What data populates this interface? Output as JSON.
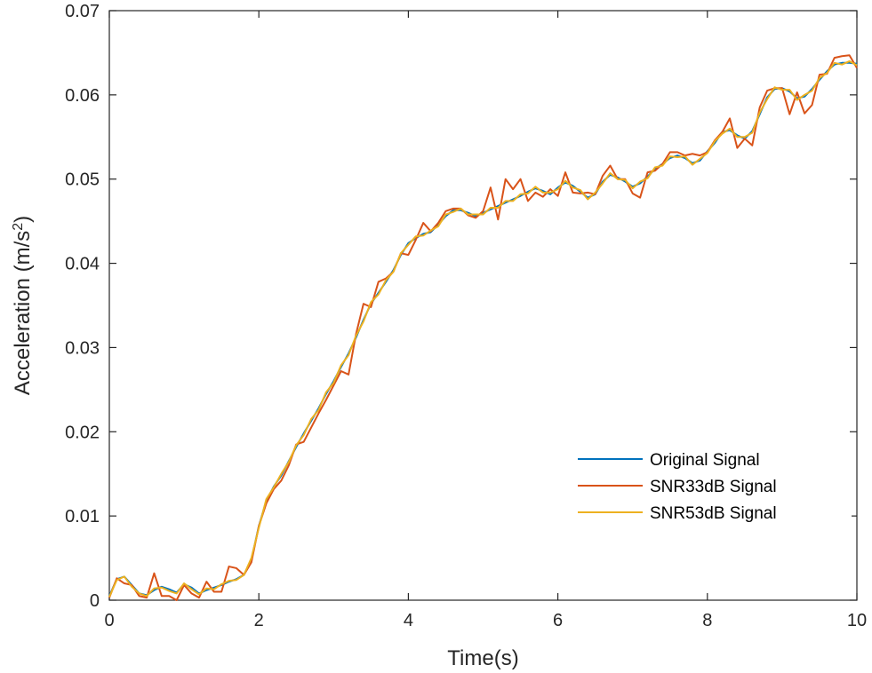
{
  "chart_data": {
    "type": "line",
    "xlabel": "Time(s)",
    "ylabel": "Acceleration (m/s",
    "ylabel_sup": "2",
    "ylabel_close": ")",
    "xlim": [
      0,
      10
    ],
    "ylim": [
      0,
      0.07
    ],
    "xticks": [
      0,
      2,
      4,
      6,
      8,
      10
    ],
    "xtick_labels": [
      "0",
      "2",
      "4",
      "6",
      "8",
      "10"
    ],
    "yticks": [
      0,
      0.01,
      0.02,
      0.03,
      0.04,
      0.05,
      0.06,
      0.07
    ],
    "ytick_labels": [
      "0",
      "0.01",
      "0.02",
      "0.03",
      "0.04",
      "0.05",
      "0.06",
      "0.07"
    ],
    "grid": false,
    "legend_position": "bottom-right",
    "x": [
      0.0,
      0.1,
      0.2,
      0.3,
      0.4,
      0.5,
      0.6,
      0.7,
      0.8,
      0.9,
      1.0,
      1.1,
      1.2,
      1.3,
      1.4,
      1.5,
      1.6,
      1.7,
      1.8,
      1.9,
      2.0,
      2.1,
      2.2,
      2.3,
      2.4,
      2.5,
      2.6,
      2.7,
      2.8,
      2.9,
      3.0,
      3.1,
      3.2,
      3.3,
      3.4,
      3.5,
      3.6,
      3.7,
      3.8,
      3.9,
      4.0,
      4.1,
      4.2,
      4.3,
      4.4,
      4.5,
      4.6,
      4.7,
      4.8,
      4.9,
      5.0,
      5.1,
      5.2,
      5.3,
      5.4,
      5.5,
      5.6,
      5.7,
      5.8,
      5.9,
      6.0,
      6.1,
      6.2,
      6.3,
      6.4,
      6.5,
      6.6,
      6.7,
      6.8,
      6.9,
      7.0,
      7.1,
      7.2,
      7.3,
      7.4,
      7.5,
      7.6,
      7.7,
      7.8,
      7.9,
      8.0,
      8.1,
      8.2,
      8.3,
      8.4,
      8.5,
      8.6,
      8.7,
      8.8,
      8.9,
      9.0,
      9.1,
      9.2,
      9.3,
      9.4,
      9.5,
      9.6,
      9.7,
      9.8,
      9.9,
      10.0
    ],
    "series": [
      {
        "name": "Original Signal",
        "color": "#0072BD",
        "values": [
          0.0005,
          0.0025,
          0.0028,
          0.0018,
          0.0008,
          0.0006,
          0.0012,
          0.0016,
          0.0013,
          0.0009,
          0.0019,
          0.0015,
          0.0008,
          0.0012,
          0.0015,
          0.0018,
          0.0022,
          0.0025,
          0.003,
          0.0048,
          0.0088,
          0.0118,
          0.0135,
          0.0148,
          0.0165,
          0.0182,
          0.0198,
          0.0213,
          0.0228,
          0.0245,
          0.026,
          0.0277,
          0.0293,
          0.0312,
          0.0333,
          0.0352,
          0.0365,
          0.0378,
          0.0392,
          0.041,
          0.0424,
          0.043,
          0.0435,
          0.0437,
          0.0446,
          0.0456,
          0.0463,
          0.0463,
          0.046,
          0.0456,
          0.046,
          0.0464,
          0.0468,
          0.0472,
          0.0476,
          0.048,
          0.0485,
          0.0489,
          0.0486,
          0.0482,
          0.049,
          0.0496,
          0.0492,
          0.0485,
          0.0478,
          0.0482,
          0.0497,
          0.0505,
          0.0502,
          0.0497,
          0.0491,
          0.0495,
          0.0503,
          0.0512,
          0.0518,
          0.0525,
          0.0528,
          0.0525,
          0.0519,
          0.0522,
          0.0533,
          0.0543,
          0.0556,
          0.0558,
          0.0552,
          0.0548,
          0.0557,
          0.0577,
          0.0597,
          0.0607,
          0.0608,
          0.0604,
          0.0596,
          0.0598,
          0.0607,
          0.0618,
          0.0628,
          0.0636,
          0.0638,
          0.0638,
          0.0637
        ]
      },
      {
        "name": "SNR33dB Signal",
        "color": "#D95319",
        "values": [
          0.0003,
          0.0026,
          0.002,
          0.0018,
          0.0005,
          0.0003,
          0.0032,
          0.0005,
          0.0005,
          0.0,
          0.0018,
          0.0008,
          0.0003,
          0.0022,
          0.001,
          0.001,
          0.004,
          0.0038,
          0.003,
          0.0045,
          0.0088,
          0.0115,
          0.0132,
          0.0142,
          0.016,
          0.0185,
          0.0188,
          0.0205,
          0.0222,
          0.0238,
          0.0255,
          0.0272,
          0.0268,
          0.0316,
          0.0352,
          0.0348,
          0.0378,
          0.0382,
          0.039,
          0.0412,
          0.041,
          0.0428,
          0.0448,
          0.0438,
          0.0448,
          0.0462,
          0.0465,
          0.0465,
          0.0457,
          0.0454,
          0.0462,
          0.049,
          0.0452,
          0.05,
          0.0488,
          0.05,
          0.0474,
          0.0484,
          0.0479,
          0.0488,
          0.048,
          0.0508,
          0.0484,
          0.0483,
          0.0484,
          0.0482,
          0.0504,
          0.0516,
          0.05,
          0.05,
          0.0483,
          0.0478,
          0.0508,
          0.051,
          0.0518,
          0.0532,
          0.0532,
          0.0528,
          0.053,
          0.0528,
          0.0532,
          0.0546,
          0.0556,
          0.0572,
          0.0537,
          0.0548,
          0.054,
          0.0585,
          0.0605,
          0.0608,
          0.0608,
          0.0577,
          0.0603,
          0.0578,
          0.0588,
          0.0624,
          0.0625,
          0.0644,
          0.0646,
          0.0647,
          0.0632
        ]
      },
      {
        "name": "SNR53dB Signal",
        "color": "#EDB120",
        "values": [
          0.0004,
          0.0024,
          0.0028,
          0.0016,
          0.0008,
          0.0005,
          0.0014,
          0.0015,
          0.0011,
          0.0008,
          0.002,
          0.0013,
          0.0007,
          0.0014,
          0.0013,
          0.0019,
          0.0023,
          0.0024,
          0.003,
          0.005,
          0.0086,
          0.012,
          0.0134,
          0.015,
          0.0164,
          0.0184,
          0.0196,
          0.0215,
          0.0226,
          0.0247,
          0.0258,
          0.0279,
          0.0291,
          0.0314,
          0.0331,
          0.0354,
          0.0363,
          0.038,
          0.039,
          0.0412,
          0.0422,
          0.0432,
          0.0433,
          0.0439,
          0.0444,
          0.0458,
          0.0461,
          0.0465,
          0.0458,
          0.0458,
          0.0458,
          0.0466,
          0.0466,
          0.0474,
          0.0474,
          0.0482,
          0.0483,
          0.0491,
          0.0484,
          0.0484,
          0.0488,
          0.0498,
          0.049,
          0.0487,
          0.0476,
          0.0484,
          0.0495,
          0.0507,
          0.05,
          0.0499,
          0.0489,
          0.0497,
          0.0501,
          0.0514,
          0.0516,
          0.0527,
          0.0526,
          0.0527,
          0.0517,
          0.0524,
          0.0531,
          0.0545,
          0.0554,
          0.056,
          0.055,
          0.055,
          0.0555,
          0.0579,
          0.0595,
          0.0609,
          0.0606,
          0.0606,
          0.0594,
          0.06,
          0.0605,
          0.062,
          0.0626,
          0.0638,
          0.0636,
          0.064,
          0.0635
        ]
      }
    ]
  }
}
